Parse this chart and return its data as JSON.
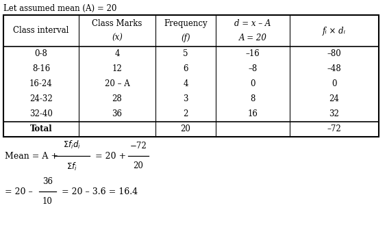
{
  "title_text": "Let assumed mean (A) = 20",
  "header_row1": [
    "Class interval",
    "Class Marks",
    "Frequency",
    "d = x – A",
    "fᵢ × dᵢ"
  ],
  "header_row2": [
    "",
    "(x)",
    "(f)",
    "A = 20",
    ""
  ],
  "rows": [
    [
      "0-8",
      "4",
      "5",
      "–16",
      "–80"
    ],
    [
      "8-16",
      "12",
      "6",
      "–8",
      "–48"
    ],
    [
      "16-24",
      "20 – A",
      "4",
      "0",
      "0"
    ],
    [
      "24-32",
      "28",
      "3",
      "8",
      "24"
    ],
    [
      "32-40",
      "36",
      "2",
      "16",
      "32"
    ]
  ],
  "total_row": [
    "Total",
    "",
    "20",
    "",
    "–72"
  ],
  "bg_color": "#ffffff",
  "text_color": "#000000"
}
